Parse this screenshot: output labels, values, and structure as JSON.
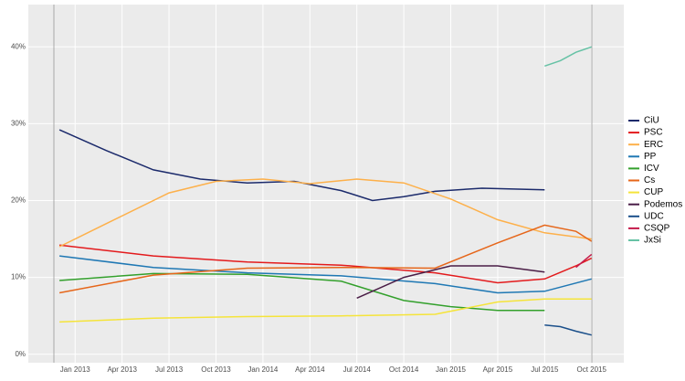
{
  "chart_data": {
    "type": "line",
    "xlim": [
      "Nov 2012",
      "Dec 2015"
    ],
    "xticks": [
      "Jan 2013",
      "Apr 2013",
      "Jul 2013",
      "Oct 2013",
      "Jan 2014",
      "Apr 2014",
      "Jul 2014",
      "Oct 2014",
      "Jan 2015",
      "Apr 2015",
      "Jul 2015",
      "Oct 2015"
    ],
    "ylim": [
      -1.1,
      45.5
    ],
    "yticks": [
      {
        "value": 0,
        "label": "0%"
      },
      {
        "value": 10,
        "label": "10%"
      },
      {
        "value": 20,
        "label": "20%"
      },
      {
        "value": 30,
        "label": "30%"
      },
      {
        "value": 40,
        "label": "40%"
      }
    ],
    "grid": true,
    "legend": "right",
    "series": [
      {
        "name": "CiU",
        "color": "#1b2a6b",
        "x": [
          "Dec 2012",
          "Mar 2013",
          "Jun 2013",
          "Sep 2013",
          "Dec 2013",
          "Mar 2014",
          "Jun 2014",
          "Aug 2014",
          "Oct 2014",
          "Dec 2014",
          "Mar 2015",
          "Jul 2015"
        ],
        "values": [
          29.2,
          26.5,
          24,
          22.8,
          22.3,
          22.5,
          21.3,
          20,
          20.5,
          21.2,
          21.6,
          21.4
        ]
      },
      {
        "name": "PSC",
        "color": "#e31a1c",
        "x": [
          "Dec 2012",
          "Jun 2013",
          "Dec 2013",
          "Jun 2014",
          "Dec 2014",
          "Apr 2015",
          "Jul 2015",
          "Sep 2015",
          "Oct 2015"
        ],
        "values": [
          14.2,
          12.8,
          12,
          11.6,
          10.6,
          9.3,
          9.8,
          11.5,
          12.5
        ]
      },
      {
        "name": "ERC",
        "color": "#fdb04a",
        "x": [
          "Dec 2012",
          "Mar 2013",
          "Jul 2013",
          "Oct 2013",
          "Jan 2014",
          "Apr 2014",
          "Jul 2014",
          "Oct 2014",
          "Jan 2015",
          "Apr 2015",
          "Jul 2015",
          "Oct 2015"
        ],
        "values": [
          14,
          17,
          21,
          22.5,
          22.8,
          22.2,
          22.8,
          22.3,
          20.2,
          17.5,
          15.8,
          15
        ]
      },
      {
        "name": "PP",
        "color": "#1f78b4",
        "x": [
          "Dec 2012",
          "Jun 2013",
          "Dec 2013",
          "Jun 2014",
          "Dec 2014",
          "Apr 2015",
          "Jul 2015",
          "Oct 2015"
        ],
        "values": [
          12.8,
          11.3,
          10.6,
          10.2,
          9.2,
          8,
          8.2,
          9.8
        ]
      },
      {
        "name": "ICV",
        "color": "#33a02c",
        "x": [
          "Dec 2012",
          "Jun 2013",
          "Dec 2013",
          "Jun 2014",
          "Oct 2014",
          "Jan 2015",
          "Apr 2015",
          "Jul 2015"
        ],
        "values": [
          9.6,
          10.5,
          10.4,
          9.5,
          7,
          6.2,
          5.7,
          5.7
        ]
      },
      {
        "name": "Cs",
        "color": "#e6661a",
        "x": [
          "Dec 2012",
          "Jun 2013",
          "Dec 2013",
          "Jun 2014",
          "Dec 2014",
          "Apr 2015",
          "Jul 2015",
          "Sep 2015",
          "Oct 2015"
        ],
        "values": [
          8,
          10.3,
          11.2,
          11.3,
          11.2,
          14.5,
          16.8,
          16,
          14.7
        ]
      },
      {
        "name": "CUP",
        "color": "#f5e43a",
        "x": [
          "Dec 2012",
          "Jun 2013",
          "Dec 2013",
          "Jun 2014",
          "Dec 2014",
          "Apr 2015",
          "Jul 2015",
          "Oct 2015"
        ],
        "values": [
          4.2,
          4.7,
          4.9,
          5,
          5.2,
          6.8,
          7.2,
          7.2
        ]
      },
      {
        "name": "Podemos",
        "color": "#4a1d46",
        "x": [
          "Jul 2014",
          "Oct 2014",
          "Jan 2015",
          "Apr 2015",
          "Jul 2015"
        ],
        "values": [
          7.3,
          10,
          11.5,
          11.5,
          10.7
        ]
      },
      {
        "name": "UDC",
        "color": "#1a4f8a",
        "x": [
          "Jul 2015",
          "Aug 2015",
          "Sep 2015",
          "Oct 2015"
        ],
        "values": [
          3.8,
          3.6,
          3,
          2.5
        ]
      },
      {
        "name": "CSQP",
        "color": "#c51b4a",
        "x": [
          "Sep 2015",
          "Oct 2015"
        ],
        "values": [
          11.3,
          13
        ]
      },
      {
        "name": "JxSi",
        "color": "#66c2a5",
        "x": [
          "Jul 2015",
          "Aug 2015",
          "Sep 2015",
          "Oct 2015"
        ],
        "values": [
          37.5,
          38.2,
          39.3,
          40
        ]
      }
    ]
  }
}
